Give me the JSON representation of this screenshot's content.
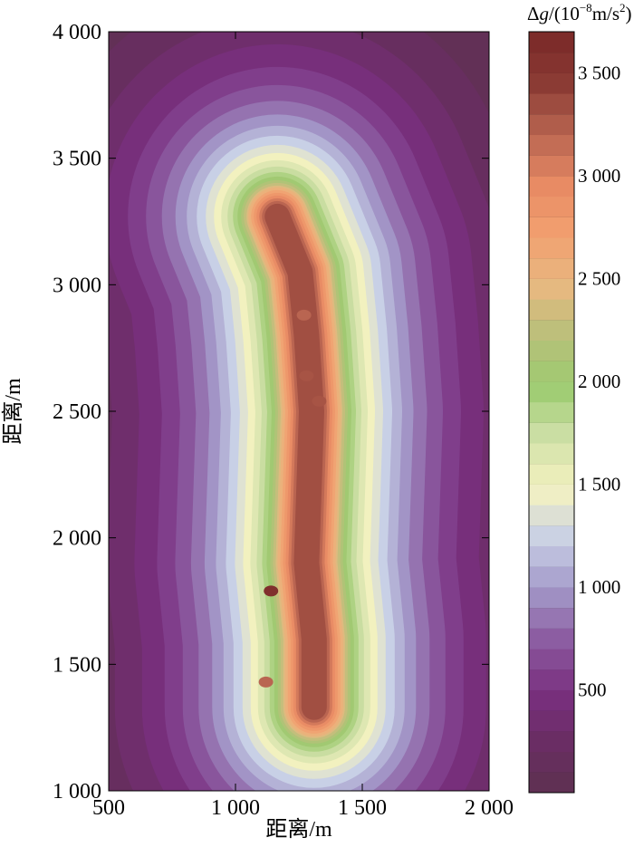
{
  "chart_data": {
    "type": "heatmap",
    "title": "",
    "xlabel": "距离/m",
    "ylabel": "距离/m",
    "xlim": [
      500,
      2000
    ],
    "ylim": [
      1000,
      4000
    ],
    "x_ticks": [
      {
        "value": 500,
        "label": "500"
      },
      {
        "value": 1000,
        "label": "1 000"
      },
      {
        "value": 1500,
        "label": "1 500"
      },
      {
        "value": 2000,
        "label": "2 000"
      }
    ],
    "y_ticks": [
      {
        "value": 1000,
        "label": "1 000"
      },
      {
        "value": 1500,
        "label": "1 500"
      },
      {
        "value": 2000,
        "label": "2 000"
      },
      {
        "value": 2500,
        "label": "2 500"
      },
      {
        "value": 3000,
        "label": "3 000"
      },
      {
        "value": 3500,
        "label": "3 500"
      },
      {
        "value": 4000,
        "label": "4 000"
      }
    ],
    "colorbar": {
      "title_prefix": "Δ",
      "title_var": "g",
      "title_open": "/(10",
      "title_exp": "−8",
      "title_unit": "m/s",
      "title_sq": "2",
      "title_close": ")",
      "range": [
        0,
        3700
      ],
      "levels": 37,
      "ticks": [
        {
          "value": 500,
          "label": "500"
        },
        {
          "value": 1000,
          "label": "1 000"
        },
        {
          "value": 1500,
          "label": "1 500"
        },
        {
          "value": 2000,
          "label": "2 000"
        },
        {
          "value": 2500,
          "label": "2 500"
        },
        {
          "value": 3000,
          "label": "3 000"
        },
        {
          "value": 3500,
          "label": "3 500"
        }
      ],
      "colors": [
        "#5e3150",
        "#6a2d64",
        "#7a3080",
        "#8b5aa0",
        "#a398c8",
        "#c8d0e6",
        "#f4f2c0",
        "#cfe0a8",
        "#9ccb70",
        "#b8c07a",
        "#e8b880",
        "#f2a070",
        "#e88a64",
        "#b86450",
        "#8a3a34",
        "#7a2828"
      ]
    },
    "anomaly_centerline": [
      {
        "x": 1165,
        "y": 3270
      },
      {
        "x": 1255,
        "y": 3050
      },
      {
        "x": 1280,
        "y": 2800
      },
      {
        "x": 1300,
        "y": 2500
      },
      {
        "x": 1290,
        "y": 2200
      },
      {
        "x": 1280,
        "y": 1900
      },
      {
        "x": 1310,
        "y": 1600
      },
      {
        "x": 1310,
        "y": 1330
      }
    ],
    "peak_values": [
      {
        "x": 1140,
        "y": 1790,
        "value": 3600
      },
      {
        "x": 1120,
        "y": 1430,
        "value": 3200
      },
      {
        "x": 1270,
        "y": 2880,
        "value": 3200
      },
      {
        "x": 1280,
        "y": 2640,
        "value": 3300
      },
      {
        "x": 1330,
        "y": 2540,
        "value": 3300
      }
    ]
  }
}
